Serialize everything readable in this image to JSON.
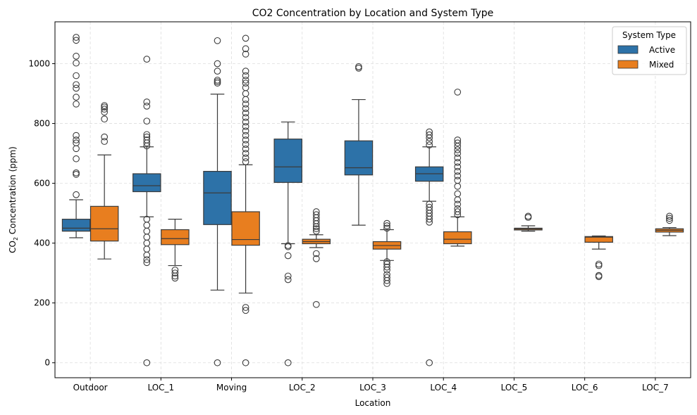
{
  "chart_data": {
    "type": "box",
    "title": "CO2 Concentration by Location and System Type",
    "xlabel": "Location",
    "ylabel_prefix": "CO",
    "ylabel_sub": "2",
    "ylabel_suffix": " Concentration (ppm)",
    "ylim": [
      -50,
      1140
    ],
    "yticks": [
      0,
      200,
      400,
      600,
      800,
      1000
    ],
    "grid": true,
    "categories": [
      "Outdoor",
      "LOC_1",
      "Moving",
      "LOC_2",
      "LOC_3",
      "LOC_4",
      "LOC_5",
      "LOC_6",
      "LOC_7"
    ],
    "legend": {
      "title": "System Type",
      "position": "top-right",
      "items": [
        {
          "name": "Active",
          "color": "#2d72a8"
        },
        {
          "name": "Mixed",
          "color": "#e87e1f"
        }
      ]
    },
    "series": [
      {
        "name": "Active",
        "color": "#2d72a8",
        "boxes": [
          {
            "category": "Outdoor",
            "whisker_low": 418,
            "q1": 440,
            "median": 450,
            "q3": 480,
            "whisker_high": 545,
            "outliers": [
              562,
              630,
              635,
              682,
              716,
              735,
              745,
              760,
              865,
              888,
              918,
              930,
              960,
              1002,
              1025,
              1078,
              1088
            ]
          },
          {
            "category": "LOC_1",
            "whisker_low": 488,
            "q1": 572,
            "median": 592,
            "q3": 632,
            "whisker_high": 722,
            "outliers": [
              0,
              335,
              345,
              360,
              380,
              400,
              420,
              440,
              460,
              480,
              725,
              735,
              745,
              755,
              763,
              808,
              858,
              872,
              1015
            ]
          },
          {
            "category": "Moving",
            "whisker_low": 243,
            "q1": 462,
            "median": 568,
            "q3": 640,
            "whisker_high": 898,
            "outliers": [
              0,
              935,
              940,
              945,
              975,
              1000,
              1077
            ]
          },
          {
            "category": "LOC_2",
            "whisker_low": 398,
            "q1": 603,
            "median": 655,
            "q3": 748,
            "whisker_high": 805,
            "outliers": [
              0,
              278,
              290,
              358,
              388,
              392
            ]
          },
          {
            "category": "LOC_3",
            "whisker_low": 460,
            "q1": 628,
            "median": 652,
            "q3": 742,
            "whisker_high": 880,
            "outliers": [
              985,
              990
            ]
          },
          {
            "category": "LOC_4",
            "whisker_low": 540,
            "q1": 607,
            "median": 632,
            "q3": 655,
            "whisker_high": 722,
            "outliers": [
              0,
              470,
              480,
              490,
              500,
              510,
              520,
              530,
              728,
              740,
              752,
              762,
              772
            ]
          }
        ]
      },
      {
        "name": "Mixed",
        "color": "#e87e1f",
        "boxes": [
          {
            "category": "Outdoor",
            "whisker_low": 347,
            "q1": 407,
            "median": 448,
            "q3": 523,
            "whisker_high": 695,
            "outliers": [
              740,
              755,
              815,
              838,
              848,
              855,
              860
            ]
          },
          {
            "category": "LOC_1",
            "whisker_low": 325,
            "q1": 395,
            "median": 415,
            "q3": 445,
            "whisker_high": 480,
            "outliers": [
              283,
              290,
              300,
              310
            ]
          },
          {
            "category": "Moving",
            "whisker_low": 233,
            "q1": 393,
            "median": 412,
            "q3": 505,
            "whisker_high": 662,
            "outliers": [
              0,
              175,
              185,
              672,
              685,
              700,
              715,
              730,
              745,
              760,
              775,
              790,
              805,
              820,
              835,
              850,
              865,
              880,
              900,
              920,
              935,
              945,
              960,
              975,
              1032,
              1050,
              1085
            ]
          },
          {
            "category": "LOC_2",
            "whisker_low": 385,
            "q1": 398,
            "median": 405,
            "q3": 413,
            "whisker_high": 428,
            "outliers": [
              195,
              348,
              365,
              440,
              448,
              455,
              465,
              475,
              485,
              495,
              505
            ]
          },
          {
            "category": "LOC_3",
            "whisker_low": 342,
            "q1": 380,
            "median": 392,
            "q3": 405,
            "whisker_high": 445,
            "outliers": [
              265,
              275,
              285,
              295,
              310,
              320,
              330,
              338,
              450,
              458,
              466
            ]
          },
          {
            "category": "LOC_4",
            "whisker_low": 390,
            "q1": 398,
            "median": 413,
            "q3": 438,
            "whisker_high": 488,
            "outliers": [
              495,
              505,
              515,
              530,
              545,
              565,
              590,
              610,
              625,
              640,
              655,
              670,
              685,
              700,
              712,
              724,
              735,
              745,
              905
            ]
          },
          {
            "category": "LOC_5",
            "whisker_low": 440,
            "q1": 444,
            "median": 447,
            "q3": 450,
            "whisker_high": 458,
            "outliers": [
              486,
              490
            ]
          },
          {
            "category": "LOC_6",
            "whisker_low": 380,
            "q1": 403,
            "median": 420,
            "q3": 422,
            "whisker_high": 424,
            "outliers": [
              288,
              292,
              325,
              330
            ]
          },
          {
            "category": "LOC_7",
            "whisker_low": 425,
            "q1": 437,
            "median": 443,
            "q3": 448,
            "whisker_high": 452,
            "outliers": [
              476,
              483,
              490
            ]
          }
        ]
      }
    ]
  }
}
